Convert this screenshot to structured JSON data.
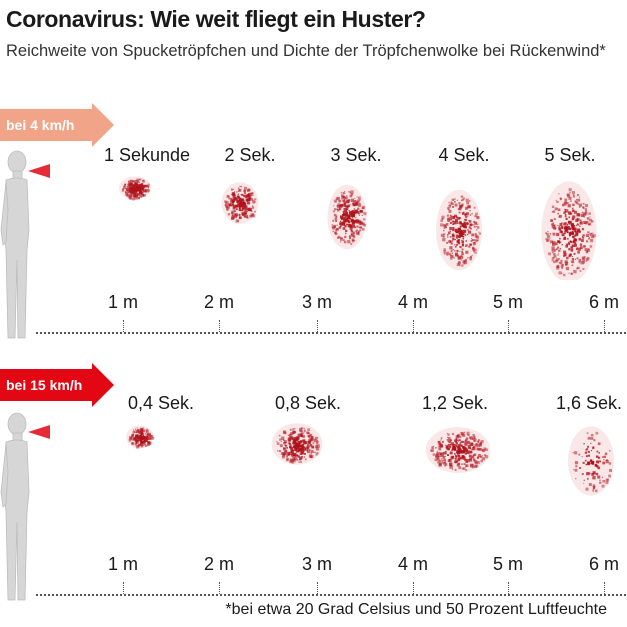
{
  "title": "Coronavirus: Wie weit fliegt ein Huster?",
  "subtitle": "Reichweite von Spucketröpfchen und Dichte der Tröpfchenwolke bei Rückenwind*",
  "colors": {
    "arrow_slow": "#f2a488",
    "arrow_fast": "#e30613",
    "droplet": "#b0121b",
    "figure": "#d4d4d4"
  },
  "distance_labels": [
    "1 m",
    "2 m",
    "3 m",
    "4 m",
    "5 m",
    "6 m"
  ],
  "rows": [
    {
      "wind_label": "bei 4 km/h",
      "times": [
        "1 Sekunde",
        "2 Sek.",
        "3 Sek.",
        "4 Sek.",
        "5 Sek."
      ]
    },
    {
      "wind_label": "bei 15 km/h",
      "times": [
        "0,4 Sek.",
        "0,8 Sek.",
        "1,2 Sek.",
        "1,6 Sek."
      ]
    }
  ],
  "footnote": "*bei etwa 20 Grad Celsius und 50 Prozent Luftfeuchte"
}
